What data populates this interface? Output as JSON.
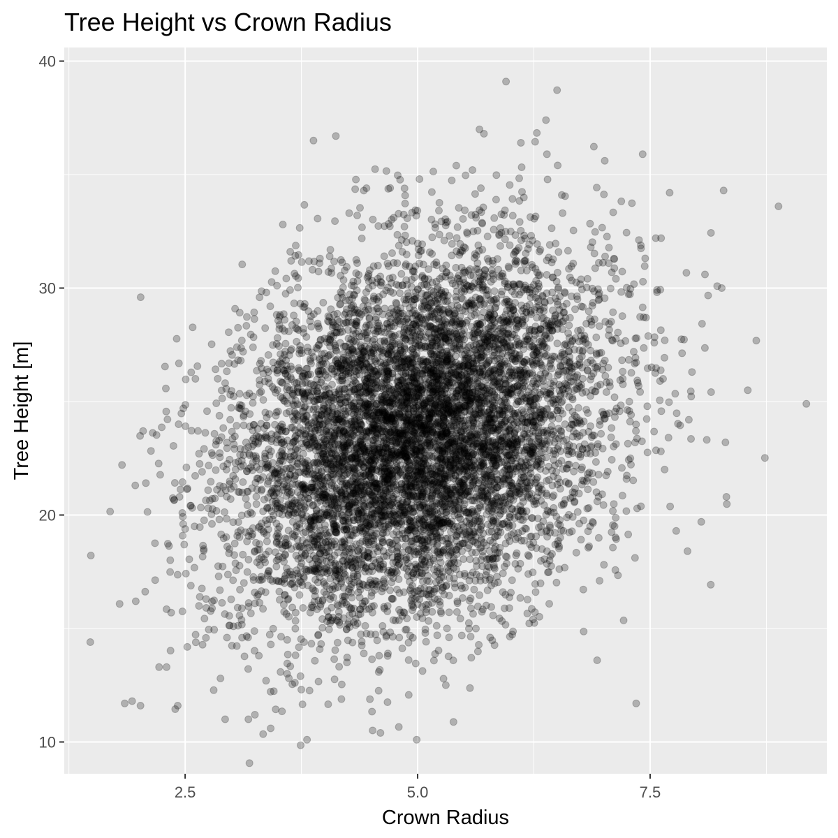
{
  "chart_data": {
    "type": "scatter",
    "title": "Tree Height vs Crown Radius",
    "xlabel": "Crown Radius",
    "ylabel": "Tree Height [m]",
    "xlim": [
      1.2,
      9.4
    ],
    "ylim": [
      8.6,
      40.6
    ],
    "x_ticks": [
      2.5,
      5.0,
      7.5
    ],
    "x_tick_labels": [
      "2.5",
      "5.0",
      "7.5"
    ],
    "y_ticks": [
      10,
      20,
      30,
      40
    ],
    "y_tick_labels": [
      "10",
      "20",
      "30",
      "40"
    ],
    "x_minor_ticks": [
      1.25,
      3.75,
      6.25,
      8.75
    ],
    "y_minor_ticks": [
      15,
      25,
      35
    ],
    "grid": true,
    "legend": "none",
    "colors": {
      "point_fill": "#000000",
      "point_opacity": 0.25,
      "panel_bg": "#ebebeb",
      "grid": "#ffffff"
    },
    "distribution": {
      "n_points": 8000,
      "x_mean": 5.0,
      "x_sd": 1.0,
      "y_mean": 23.5,
      "y_sd": 4.0,
      "correlation": 0.28
    },
    "points": [
      [
        1.48,
        14.4
      ],
      [
        1.85,
        11.7
      ],
      [
        1.93,
        11.8
      ],
      [
        2.02,
        11.6
      ],
      [
        2.22,
        13.3
      ],
      [
        2.3,
        13.3
      ],
      [
        2.35,
        15.7
      ],
      [
        2.42,
        11.6
      ],
      [
        2.43,
        24.0
      ],
      [
        2.44,
        20.8
      ],
      [
        2.48,
        24.7
      ],
      [
        2.49,
        18.7
      ],
      [
        2.61,
        26.0
      ],
      [
        2.7,
        18.5
      ],
      [
        2.83,
        23.1
      ],
      [
        2.86,
        17.3
      ],
      [
        2.88,
        12.8
      ],
      [
        2.93,
        11.0
      ],
      [
        2.95,
        14.6
      ],
      [
        3.18,
        11.0
      ],
      [
        3.25,
        11.2
      ],
      [
        3.37,
        12.7
      ],
      [
        3.42,
        10.6
      ],
      [
        3.55,
        32.8
      ],
      [
        3.57,
        28.6
      ],
      [
        3.63,
        31.6
      ],
      [
        3.64,
        31.2
      ],
      [
        3.74,
        12.9
      ],
      [
        3.81,
        10.1
      ],
      [
        3.88,
        36.5
      ],
      [
        3.95,
        31.3
      ],
      [
        4.12,
        36.7
      ],
      [
        4.35,
        33.2
      ],
      [
        4.45,
        34.4
      ],
      [
        4.6,
        10.4
      ],
      [
        4.99,
        10.1
      ],
      [
        5.02,
        34.8
      ],
      [
        5.59,
        35.2
      ],
      [
        5.68,
        34.4
      ],
      [
        5.95,
        39.1
      ],
      [
        6.11,
        36.4
      ],
      [
        6.38,
        37.4
      ],
      [
        6.39,
        35.9
      ],
      [
        6.55,
        34.1
      ],
      [
        7.35,
        11.7
      ],
      [
        7.42,
        35.9
      ],
      [
        7.56,
        32.2
      ],
      [
        7.71,
        34.2
      ],
      [
        8.09,
        30.6
      ],
      [
        8.27,
        30.0
      ],
      [
        8.29,
        34.3
      ],
      [
        8.32,
        20.8
      ],
      [
        8.55,
        25.5
      ],
      [
        8.88,
        33.6
      ],
      [
        9.18,
        24.9
      ],
      [
        8.05,
        19.7
      ],
      [
        7.78,
        19.3
      ],
      [
        8.31,
        23.2
      ],
      [
        7.95,
        26.3
      ],
      [
        6.93,
        13.6
      ]
    ]
  }
}
